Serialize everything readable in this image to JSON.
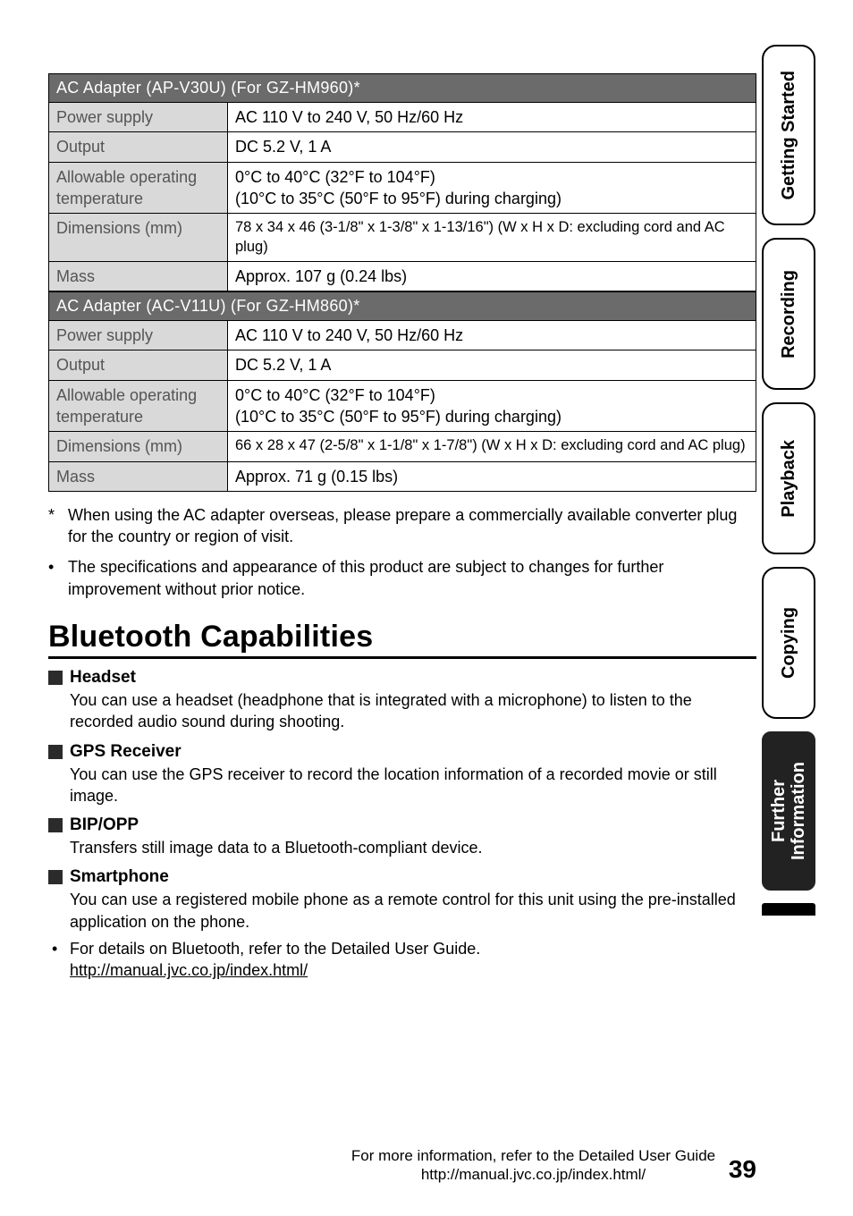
{
  "tables": [
    {
      "header": "AC Adapter (AP-V30U) (For GZ-HM960)*",
      "rows": [
        {
          "label": "Power supply",
          "value": "AC 110 V to 240 V, 50 Hz/60 Hz"
        },
        {
          "label": "Output",
          "value": "DC 5.2 V, 1 A"
        },
        {
          "label": "Allowable operating temperature",
          "value": "0°C to 40°C (32°F to 104°F)\n(10°C to 35°C (50°F to 95°F) during charging)"
        },
        {
          "label": "Dimensions (mm)",
          "value": "78 x 34 x 46 (3-1/8\" x 1-3/8\" x 1-13/16\") (W x H x D: excluding cord and AC plug)"
        },
        {
          "label": "Mass",
          "value": "Approx. 107 g (0.24 lbs)"
        }
      ]
    },
    {
      "header": "AC Adapter (AC-V11U) (For GZ-HM860)*",
      "rows": [
        {
          "label": "Power supply",
          "value": "AC 110 V to 240 V, 50 Hz/60 Hz"
        },
        {
          "label": "Output",
          "value": "DC 5.2 V, 1 A"
        },
        {
          "label": "Allowable operating temperature",
          "value": "0°C to 40°C (32°F to 104°F)\n(10°C to 35°C (50°F to 95°F) during charging)"
        },
        {
          "label": "Dimensions (mm)",
          "value": "66 x 28 x 47 (2-5/8\" x 1-1/8\" x 1-7/8\") (W x H x D: excluding cord and AC plug)"
        },
        {
          "label": "Mass",
          "value": "Approx. 71 g (0.15 lbs)"
        }
      ]
    }
  ],
  "notes": [
    {
      "mark": "*",
      "text": "When using the AC adapter overseas, please prepare a commercially available converter plug for the country or region of visit."
    },
    {
      "mark": "•",
      "text": "The specifications and appearance of this product are subject to changes for further improvement without prior notice."
    }
  ],
  "section_title": "Bluetooth Capabilities",
  "bt_items": [
    {
      "title": "Headset",
      "body": "You can use a headset (headphone that is integrated with a microphone) to listen to the recorded audio sound during shooting."
    },
    {
      "title": "GPS Receiver",
      "body": "You can use the GPS receiver to record the location information of a recorded movie or still image."
    },
    {
      "title": "BIP/OPP",
      "body": "Transfers still image data to a Bluetooth-compliant device."
    },
    {
      "title": "Smartphone",
      "body": "You can use a registered mobile phone as a remote control for this unit using the pre-installed application on the phone."
    }
  ],
  "bt_bullet": {
    "text": "For details on Bluetooth, refer to the Detailed User Guide.",
    "link": "http://manual.jvc.co.jp/index.html/"
  },
  "tabs": [
    {
      "label": "Getting Started",
      "active": false
    },
    {
      "label": "Recording",
      "active": false
    },
    {
      "label": "Playback",
      "active": false
    },
    {
      "label": "Copying",
      "active": false
    },
    {
      "label": "Further\nInformation",
      "active": true
    }
  ],
  "footer": {
    "line1": "For more information, refer to the Detailed User Guide",
    "line2": "http://manual.jvc.co.jp/index.html/",
    "page": "39"
  }
}
